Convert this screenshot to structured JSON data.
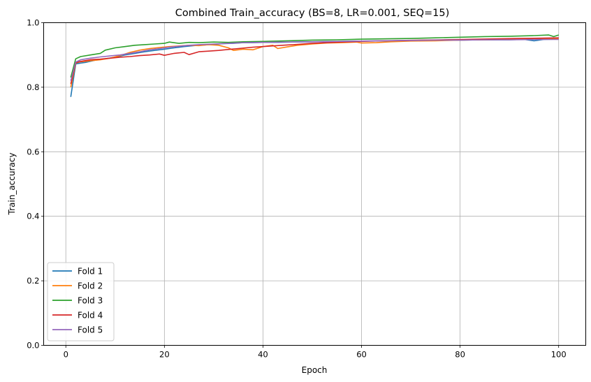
{
  "chart_data": {
    "type": "line",
    "title": "Combined Train_accuracy (BS=8, LR=0.001, SEQ=15)",
    "xlabel": "Epoch",
    "ylabel": "Train_accuracy",
    "xlim": [
      -4.5,
      105.5
    ],
    "ylim": [
      0.0,
      1.0
    ],
    "xticks": [
      0,
      20,
      40,
      60,
      80,
      100
    ],
    "yticks": [
      0.0,
      0.2,
      0.4,
      0.6,
      0.8,
      1.0
    ],
    "xtick_labels": [
      "0",
      "20",
      "40",
      "60",
      "80",
      "100"
    ],
    "ytick_labels": [
      "0.0",
      "0.2",
      "0.4",
      "0.6",
      "0.8",
      "1.0"
    ],
    "grid": true,
    "legend_position": "lower-left",
    "series": [
      {
        "name": "Fold 1",
        "color": "#1f77b4",
        "points": [
          [
            1,
            0.77
          ],
          [
            2,
            0.872
          ],
          [
            3,
            0.875
          ],
          [
            4,
            0.877
          ],
          [
            6,
            0.884
          ],
          [
            8,
            0.888
          ],
          [
            10,
            0.893
          ],
          [
            12,
            0.9
          ],
          [
            14,
            0.905
          ],
          [
            16,
            0.91
          ],
          [
            18,
            0.914
          ],
          [
            20,
            0.918
          ],
          [
            22,
            0.922
          ],
          [
            24,
            0.926
          ],
          [
            26,
            0.929
          ],
          [
            28,
            0.931
          ],
          [
            30,
            0.933
          ],
          [
            32,
            0.935
          ],
          [
            34,
            0.936
          ],
          [
            36,
            0.938
          ],
          [
            38,
            0.938
          ],
          [
            40,
            0.939
          ],
          [
            43,
            0.939
          ],
          [
            46,
            0.94
          ],
          [
            50,
            0.941
          ],
          [
            55,
            0.942
          ],
          [
            60,
            0.943
          ],
          [
            65,
            0.944
          ],
          [
            70,
            0.945
          ],
          [
            75,
            0.946
          ],
          [
            80,
            0.946
          ],
          [
            85,
            0.947
          ],
          [
            90,
            0.947
          ],
          [
            93,
            0.948
          ],
          [
            95,
            0.944
          ],
          [
            97,
            0.948
          ],
          [
            100,
            0.949
          ]
        ]
      },
      {
        "name": "Fold 2",
        "color": "#ff7f0e",
        "points": [
          [
            1,
            0.8
          ],
          [
            2,
            0.875
          ],
          [
            3,
            0.879
          ],
          [
            5,
            0.882
          ],
          [
            7,
            0.885
          ],
          [
            9,
            0.89
          ],
          [
            11,
            0.898
          ],
          [
            13,
            0.908
          ],
          [
            15,
            0.915
          ],
          [
            17,
            0.92
          ],
          [
            19,
            0.923
          ],
          [
            21,
            0.926
          ],
          [
            23,
            0.928
          ],
          [
            25,
            0.93
          ],
          [
            27,
            0.929
          ],
          [
            29,
            0.932
          ],
          [
            31,
            0.93
          ],
          [
            33,
            0.922
          ],
          [
            34,
            0.914
          ],
          [
            36,
            0.918
          ],
          [
            38,
            0.916
          ],
          [
            40,
            0.926
          ],
          [
            42,
            0.93
          ],
          [
            43,
            0.92
          ],
          [
            45,
            0.925
          ],
          [
            47,
            0.93
          ],
          [
            50,
            0.934
          ],
          [
            53,
            0.937
          ],
          [
            56,
            0.938
          ],
          [
            59,
            0.94
          ],
          [
            60,
            0.937
          ],
          [
            63,
            0.938
          ],
          [
            66,
            0.941
          ],
          [
            70,
            0.943
          ],
          [
            75,
            0.944
          ],
          [
            80,
            0.946
          ],
          [
            85,
            0.947
          ],
          [
            90,
            0.948
          ],
          [
            95,
            0.949
          ],
          [
            100,
            0.95
          ]
        ]
      },
      {
        "name": "Fold 3",
        "color": "#2ca02c",
        "points": [
          [
            1,
            0.83
          ],
          [
            2,
            0.888
          ],
          [
            3,
            0.895
          ],
          [
            5,
            0.9
          ],
          [
            7,
            0.905
          ],
          [
            8,
            0.915
          ],
          [
            10,
            0.922
          ],
          [
            12,
            0.926
          ],
          [
            14,
            0.93
          ],
          [
            16,
            0.932
          ],
          [
            18,
            0.934
          ],
          [
            20,
            0.936
          ],
          [
            21,
            0.94
          ],
          [
            23,
            0.936
          ],
          [
            25,
            0.939
          ],
          [
            27,
            0.938
          ],
          [
            30,
            0.94
          ],
          [
            33,
            0.939
          ],
          [
            36,
            0.941
          ],
          [
            40,
            0.942
          ],
          [
            45,
            0.944
          ],
          [
            50,
            0.946
          ],
          [
            55,
            0.947
          ],
          [
            60,
            0.949
          ],
          [
            65,
            0.95
          ],
          [
            70,
            0.951
          ],
          [
            75,
            0.953
          ],
          [
            80,
            0.955
          ],
          [
            85,
            0.957
          ],
          [
            90,
            0.958
          ],
          [
            95,
            0.96
          ],
          [
            98,
            0.962
          ],
          [
            99,
            0.957
          ],
          [
            100,
            0.962
          ]
        ]
      },
      {
        "name": "Fold 4",
        "color": "#d62728",
        "points": [
          [
            1,
            0.81
          ],
          [
            2,
            0.876
          ],
          [
            3,
            0.88
          ],
          [
            5,
            0.885
          ],
          [
            7,
            0.887
          ],
          [
            9,
            0.89
          ],
          [
            11,
            0.893
          ],
          [
            13,
            0.895
          ],
          [
            15,
            0.898
          ],
          [
            17,
            0.9
          ],
          [
            19,
            0.903
          ],
          [
            20,
            0.899
          ],
          [
            22,
            0.905
          ],
          [
            24,
            0.908
          ],
          [
            25,
            0.901
          ],
          [
            27,
            0.91
          ],
          [
            29,
            0.912
          ],
          [
            31,
            0.914
          ],
          [
            33,
            0.917
          ],
          [
            35,
            0.92
          ],
          [
            38,
            0.924
          ],
          [
            41,
            0.927
          ],
          [
            44,
            0.93
          ],
          [
            47,
            0.933
          ],
          [
            50,
            0.936
          ],
          [
            53,
            0.938
          ],
          [
            56,
            0.94
          ],
          [
            60,
            0.942
          ],
          [
            64,
            0.944
          ],
          [
            68,
            0.945
          ],
          [
            72,
            0.946
          ],
          [
            76,
            0.947
          ],
          [
            80,
            0.948
          ],
          [
            84,
            0.949
          ],
          [
            88,
            0.95
          ],
          [
            92,
            0.951
          ],
          [
            96,
            0.952
          ],
          [
            100,
            0.953
          ]
        ]
      },
      {
        "name": "Fold 5",
        "color": "#9467bd",
        "points": [
          [
            1,
            0.82
          ],
          [
            2,
            0.878
          ],
          [
            3,
            0.885
          ],
          [
            5,
            0.89
          ],
          [
            7,
            0.894
          ],
          [
            9,
            0.897
          ],
          [
            11,
            0.9
          ],
          [
            13,
            0.905
          ],
          [
            15,
            0.91
          ],
          [
            17,
            0.916
          ],
          [
            19,
            0.92
          ],
          [
            21,
            0.924
          ],
          [
            23,
            0.927
          ],
          [
            25,
            0.93
          ],
          [
            27,
            0.932
          ],
          [
            30,
            0.934
          ],
          [
            33,
            0.936
          ],
          [
            36,
            0.938
          ],
          [
            40,
            0.939
          ],
          [
            45,
            0.94
          ],
          [
            50,
            0.941
          ],
          [
            55,
            0.942
          ],
          [
            60,
            0.943
          ],
          [
            65,
            0.944
          ],
          [
            70,
            0.945
          ],
          [
            75,
            0.946
          ],
          [
            80,
            0.946
          ],
          [
            85,
            0.947
          ],
          [
            90,
            0.947
          ],
          [
            95,
            0.948
          ],
          [
            100,
            0.948
          ]
        ]
      }
    ]
  }
}
